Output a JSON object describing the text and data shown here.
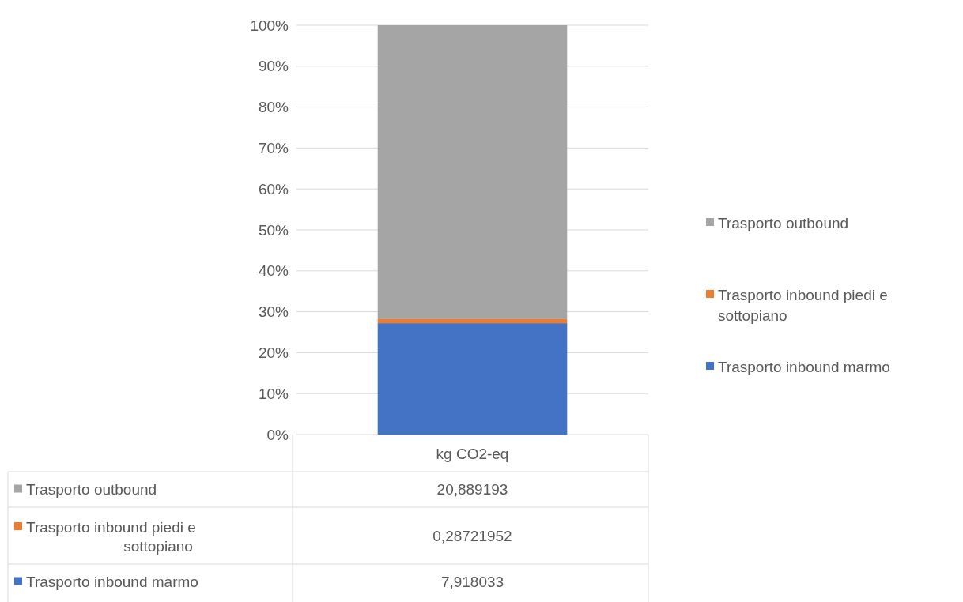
{
  "chart_data": {
    "type": "bar",
    "stacked": true,
    "categories": [
      "kg CO2-eq"
    ],
    "series": [
      {
        "name": "Trasporto inbound marmo",
        "color": "#4472c4",
        "values": [
          27.2
        ]
      },
      {
        "name": "Trasporto inbound piedi e sottopiano",
        "color": "#ed7d31",
        "values": [
          1.0
        ]
      },
      {
        "name": "Trasporto outbound",
        "color": "#a5a5a5",
        "values": [
          71.8
        ]
      }
    ],
    "ylim": [
      0,
      100
    ],
    "yticks": [
      {
        "value": 0,
        "label": "0%"
      },
      {
        "value": 10,
        "label": "10%"
      },
      {
        "value": 20,
        "label": "20%"
      },
      {
        "value": 30,
        "label": "30%"
      },
      {
        "value": 40,
        "label": "40%"
      },
      {
        "value": 50,
        "label": "50%"
      },
      {
        "value": 60,
        "label": "60%"
      },
      {
        "value": 70,
        "label": "70%"
      },
      {
        "value": 80,
        "label": "80%"
      },
      {
        "value": 90,
        "label": "90%"
      },
      {
        "value": 100,
        "label": "100%"
      }
    ],
    "annotations": [
      "7,918033",
      "0,28721952",
      "20,889193"
    ],
    "grid": "y",
    "legend": "right"
  }
}
